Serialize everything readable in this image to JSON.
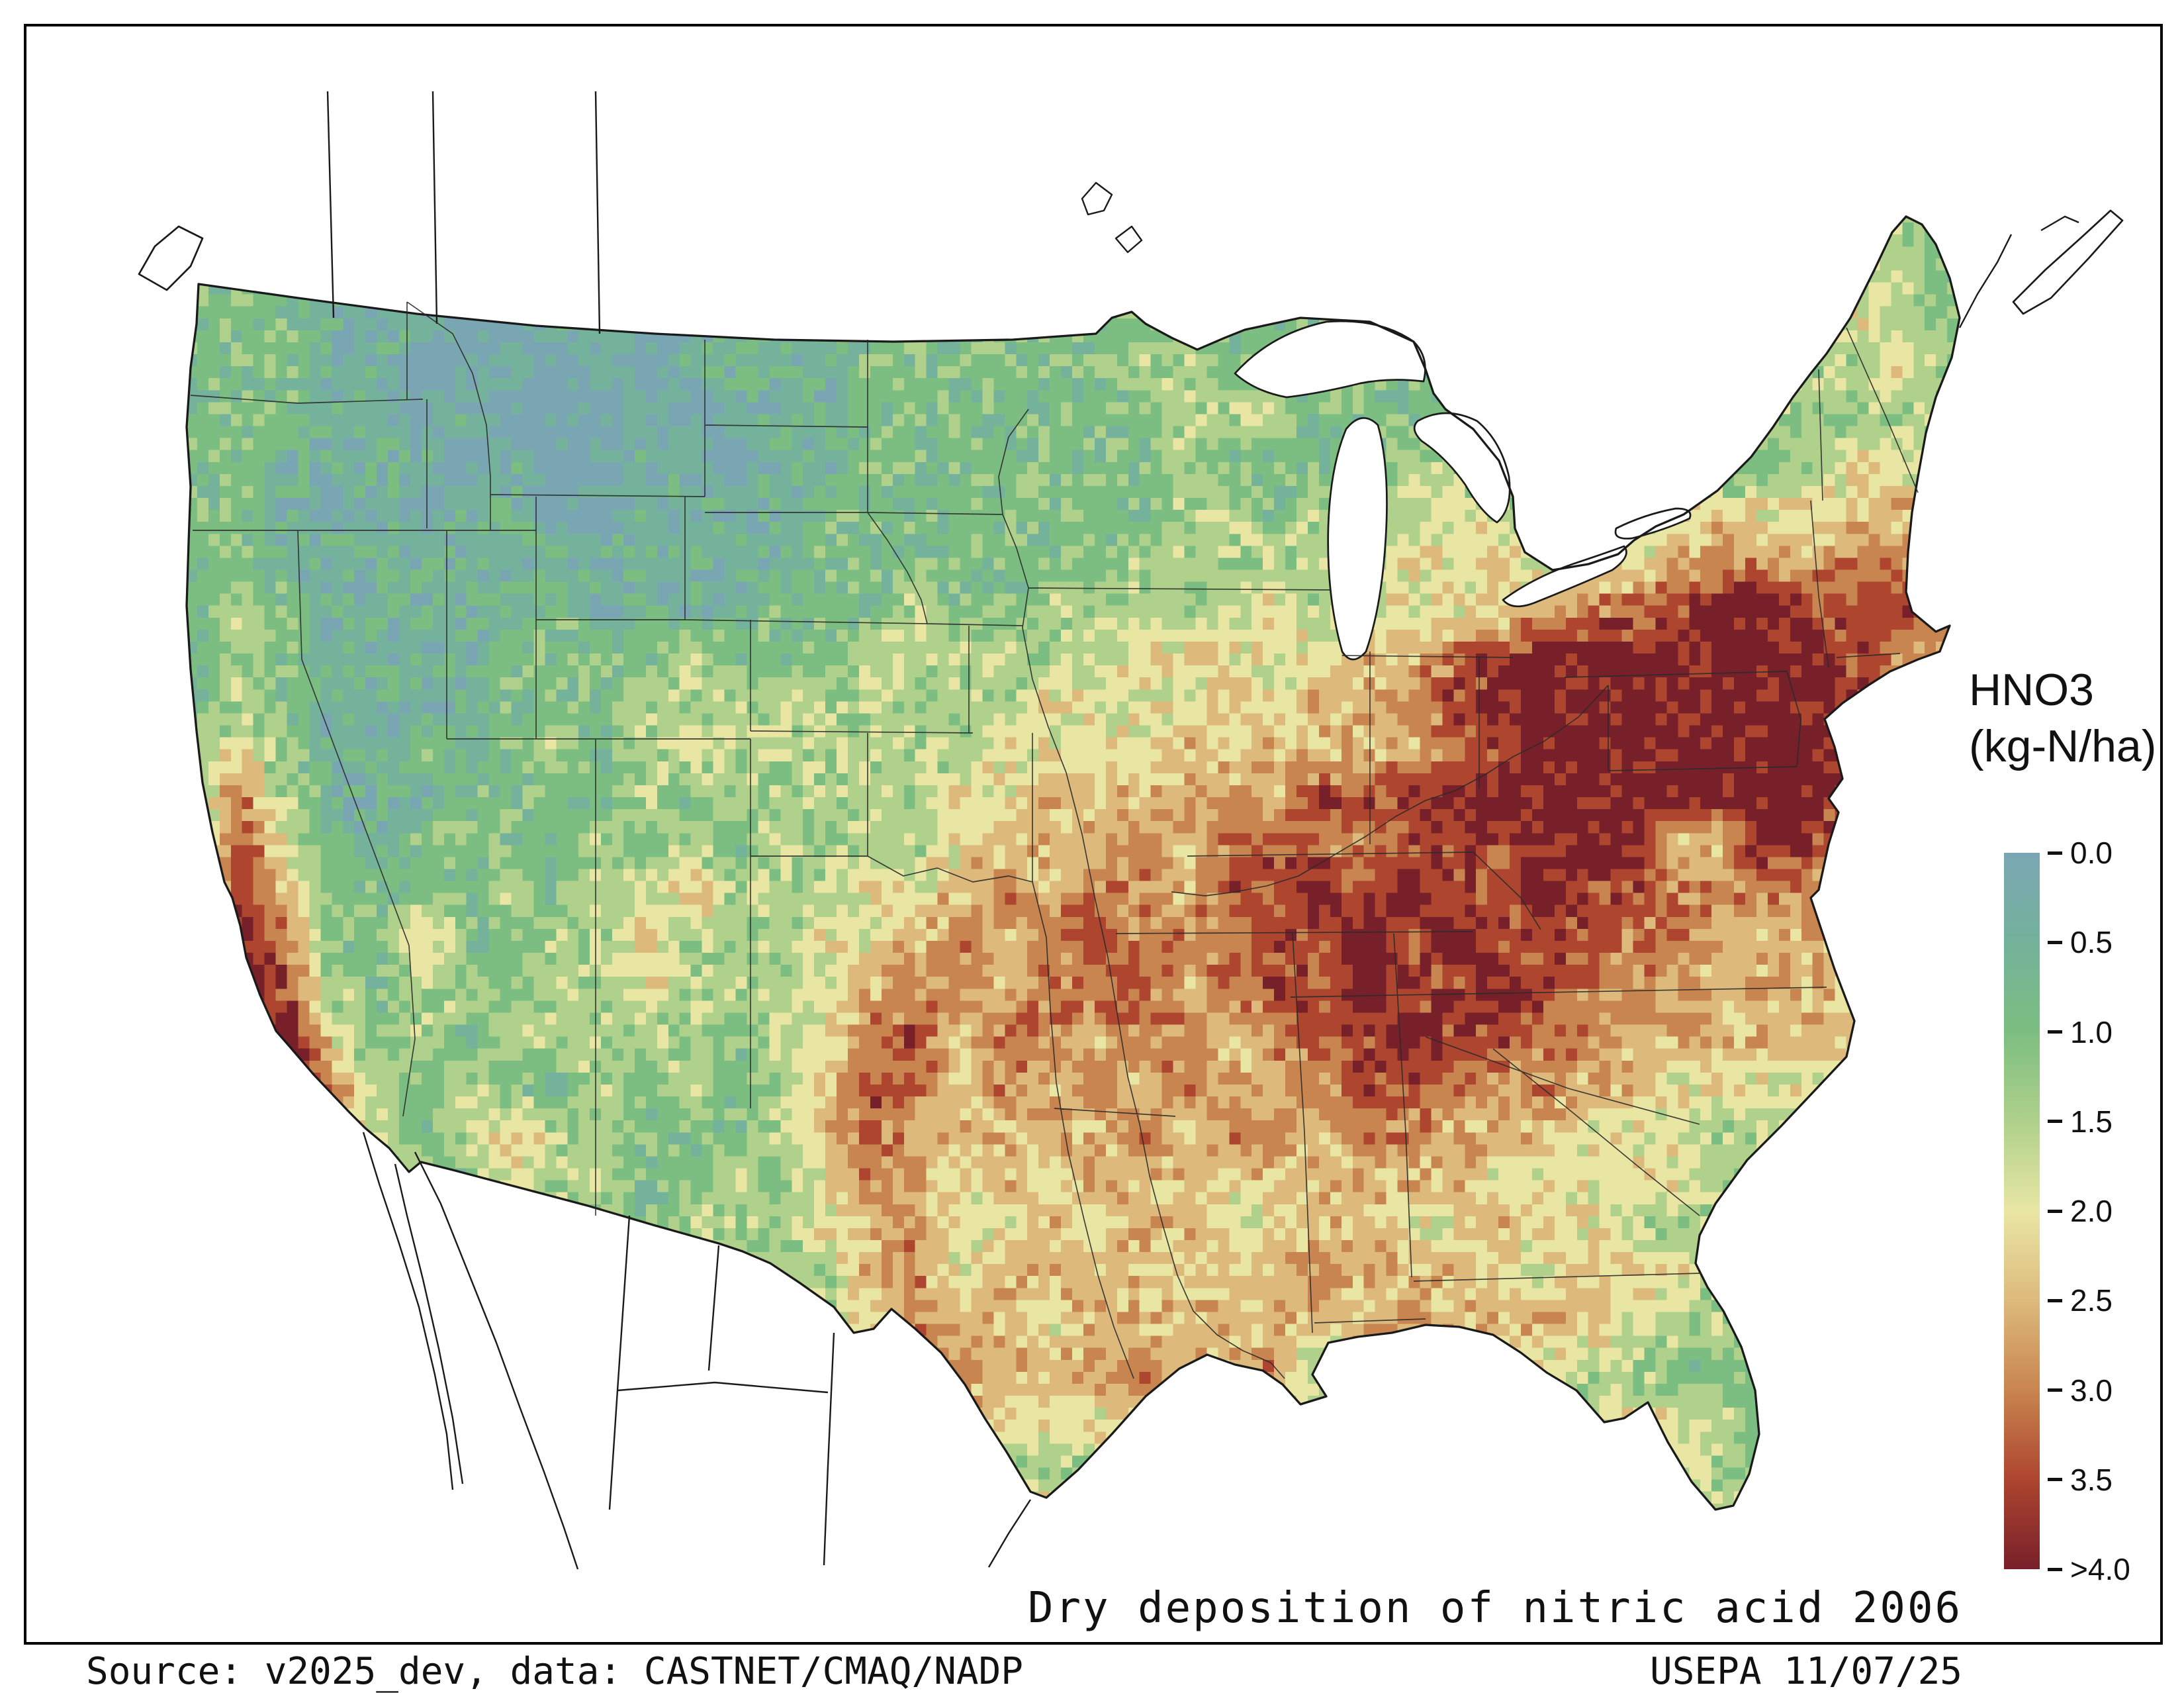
{
  "legend": {
    "title_line1": "HNO3",
    "title_line2": "(kg-N/ha)",
    "ticks": [
      "0.0",
      "0.5",
      "1.0",
      "1.5",
      "2.0",
      "2.5",
      "3.0",
      "3.5",
      ">4.0"
    ],
    "palette": [
      "#7aa6b4",
      "#74b29b",
      "#7cbe81",
      "#afd18b",
      "#e9e6a4",
      "#ddba7c",
      "#c9854f",
      "#ad452f",
      "#77202a"
    ]
  },
  "captions": {
    "map_title": "Dry deposition of nitric acid 2006",
    "source": "Source: v2025_dev, data: CASTNET/CMAQ/NADP",
    "agency": "USEPA 11/07/25"
  },
  "chart_data": {
    "type": "heatmap",
    "title": "Dry deposition of nitric acid 2006",
    "variable": "HNO3",
    "units": "kg-N/ha",
    "region": "Conterminous United States",
    "scale": {
      "min": 0.0,
      "max": 4.0,
      "step": 0.5,
      "top_label": ">4.0",
      "legend_position": "right"
    },
    "grid": {
      "description": "Coarse 40x28 raster of HNO3 dry deposition levels estimated from the map; each character is a level index 0-8, value = index * 0.5 kg-N/ha (8 means >4.0). Row 0 = north, col 0 = west.",
      "level_values": [
        0,
        0.5,
        1.0,
        1.5,
        2.0,
        2.5,
        3.0,
        3.5,
        4.0
      ],
      "rows": [
        "2222222222222222222222222222222222222332",
        "2211111111111222222222222222222222222432",
        "2221110011001122212222222222222222223432",
        "2221100101011112222223322222222222233342",
        "2221101000101112222222333222222222233333",
        "2211110100110112222222322223322232223443",
        "2211101100111122222222332323432334444454",
        "2211111111111122222223333334453445655665",
        "2321111121111222322333334344445667887776",
        "2321111222232223333334444455678888888765",
        "2321111222333333333444454556788888888765",
        "3421121232343333334444545555678888888876",
        "3631112222323333344555565777888888888765",
        "3742122223232333345556567667778884587655",
        "4752222323353334456566577878778776666555",
        "5862252233533344565676667787877766555555",
        "6873233233433345665667567787787665555555",
        "5784232333332346756656656778776655555555",
        "4686323223232357656565655677666554444444",
        "3475323533222357555556566566555444333333",
        "2353232433223246545455545555544444333333",
        "2333223333233345644545544554454433333333",
        "2333333333332335645555455655544544333333",
        "2333333333333434655455555556555543323333",
        "2233333333333334565556556255444332223333",
        "2222333333223334654445544444433344323343",
        "2222223333222335543333333333333334322343",
        "2222222233223344555433333333333333343333"
      ]
    }
  }
}
